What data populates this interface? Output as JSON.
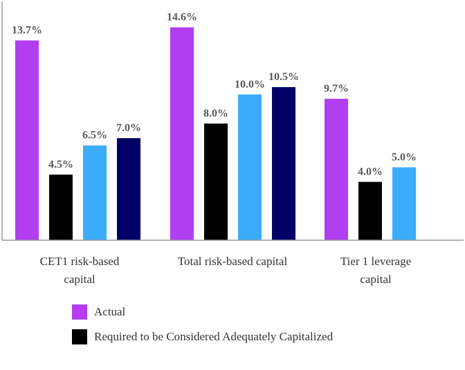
{
  "chart_data": {
    "type": "bar",
    "categories": [
      "CET1 risk-based capital",
      "Total risk-based capital",
      "Tier 1 leverage capital"
    ],
    "category_labels": [
      [
        "CET1 risk-based",
        "capital"
      ],
      [
        "Total risk-based capital"
      ],
      [
        "Tier 1 leverage",
        "capital"
      ]
    ],
    "bars": [
      [
        {
          "value": 13.7,
          "label": "13.7%",
          "color": "#b13ef0"
        },
        {
          "value": 4.5,
          "label": "4.5%",
          "color": "#000000"
        },
        {
          "value": 6.5,
          "label": "6.5%",
          "color": "#3dacfa"
        },
        {
          "value": 7.0,
          "label": "7.0%",
          "color": "#000066"
        }
      ],
      [
        {
          "value": 14.6,
          "label": "14.6%",
          "color": "#b13ef0"
        },
        {
          "value": 8.0,
          "label": "8.0%",
          "color": "#000000"
        },
        {
          "value": 10.0,
          "label": "10.0%",
          "color": "#3dacfa"
        },
        {
          "value": 10.5,
          "label": "10.5%",
          "color": "#000066"
        }
      ],
      [
        {
          "value": 9.7,
          "label": "9.7%",
          "color": "#b13ef0"
        },
        {
          "value": 4.0,
          "label": "4.0%",
          "color": "#000000"
        },
        {
          "value": 5.0,
          "label": "5.0%",
          "color": "#3dacfa"
        }
      ]
    ],
    "legend": [
      {
        "name": "Actual",
        "color": "#b13ef0"
      },
      {
        "name": "Required to be Considered Adequately Capitalized",
        "color": "#000000"
      }
    ],
    "legend_position": "bottom-left",
    "grid": false,
    "ylim": [
      0,
      16
    ]
  }
}
